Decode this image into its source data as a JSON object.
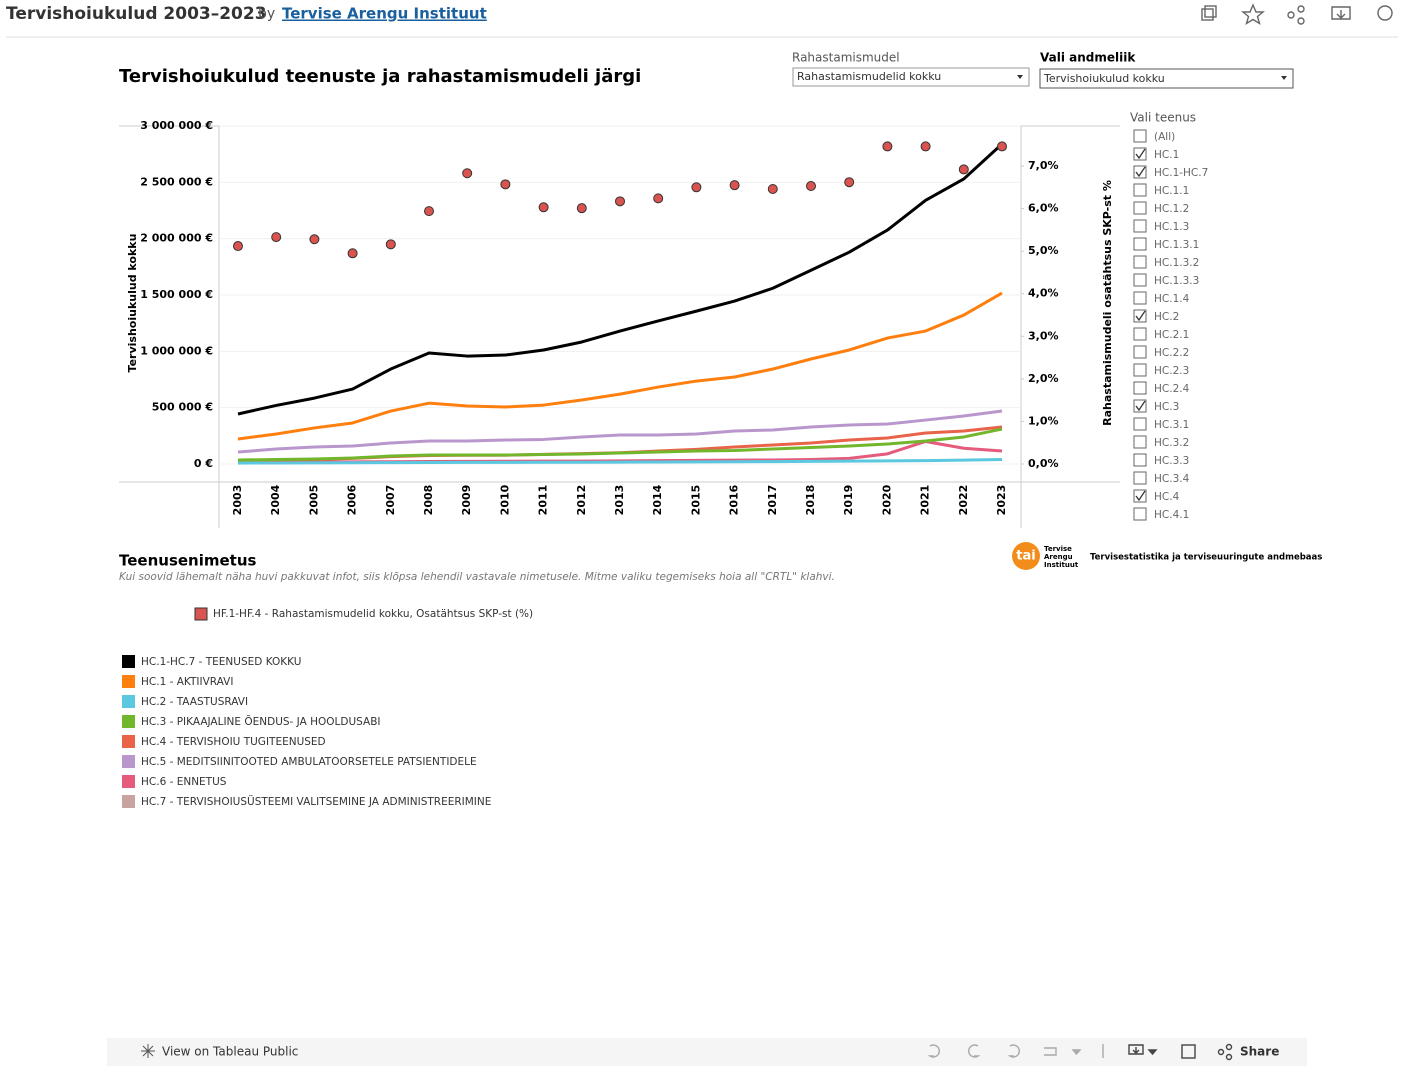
{
  "header": {
    "title": "Tervishoiukulud 2003–2023",
    "by": "by",
    "author": "Tervise Arengu Instituut"
  },
  "dashboard": {
    "title": "Tervishoiukulud teenuste ja rahastamismudeli järgi",
    "filters": [
      {
        "label": "Rahastamismudel",
        "value": "Rahastamismudelid kokku"
      },
      {
        "label": "Vali andmeliik",
        "value": "Tervishoiukulud kokku"
      }
    ],
    "service_filter": {
      "label": "Vali teenus",
      "options": [
        {
          "label": "(All)",
          "checked": false
        },
        {
          "label": "HC.1",
          "checked": true
        },
        {
          "label": "HC.1-HC.7",
          "checked": true
        },
        {
          "label": "HC.1.1",
          "checked": false
        },
        {
          "label": "HC.1.2",
          "checked": false
        },
        {
          "label": "HC.1.3",
          "checked": false
        },
        {
          "label": "HC.1.3.1",
          "checked": false
        },
        {
          "label": "HC.1.3.2",
          "checked": false
        },
        {
          "label": "HC.1.3.3",
          "checked": false
        },
        {
          "label": "HC.1.4",
          "checked": false
        },
        {
          "label": "HC.2",
          "checked": true
        },
        {
          "label": "HC.2.1",
          "checked": false
        },
        {
          "label": "HC.2.2",
          "checked": false
        },
        {
          "label": "HC.2.3",
          "checked": false
        },
        {
          "label": "HC.2.4",
          "checked": false
        },
        {
          "label": "HC.3",
          "checked": true
        },
        {
          "label": "HC.3.1",
          "checked": false
        },
        {
          "label": "HC.3.2",
          "checked": false
        },
        {
          "label": "HC.3.3",
          "checked": false
        },
        {
          "label": "HC.3.4",
          "checked": false
        },
        {
          "label": "HC.4",
          "checked": true
        },
        {
          "label": "HC.4.1",
          "checked": false
        }
      ]
    },
    "legend_title": "Teenusenimetus",
    "legend_note": "Kui soovid lähemalt näha huvi pakkuvat infot, siis klõpsa lehendil vastavale nimetusele. Mitme valiku tegemiseks hoia all \"CRTL\" klahvi.",
    "logo": {
      "mark": "tai",
      "name": [
        "Tervise",
        "Arengu",
        "Instituut"
      ]
    },
    "database": "Tervisestatistika ja terviseuuringute andmebaas"
  },
  "chart_data": {
    "type": "line",
    "categories": [
      2003,
      2004,
      2005,
      2006,
      2007,
      2008,
      2009,
      2010,
      2011,
      2012,
      2013,
      2014,
      2015,
      2016,
      2017,
      2018,
      2019,
      2020,
      2021,
      2022,
      2023
    ],
    "y_label": "Tervishoiukulud kokku",
    "y2_label": "Rahastamismudeli osatähtsus SKP-st %",
    "ylim": [
      0,
      3000000
    ],
    "yticks": [
      {
        "value": 0,
        "label": "0 €"
      },
      {
        "value": 500000,
        "label": "500 000 €"
      },
      {
        "value": 1000000,
        "label": "1 000 000 €"
      },
      {
        "value": 1500000,
        "label": "1 500 000 €"
      },
      {
        "value": 2000000,
        "label": "2 000 000 €"
      },
      {
        "value": 2500000,
        "label": "2 500 000 €"
      },
      {
        "value": 3000000,
        "label": "3 000 000 €"
      }
    ],
    "y2lim": [
      0,
      7.94
    ],
    "y2ticks": [
      {
        "value": 0,
        "label": "0,0%"
      },
      {
        "value": 1,
        "label": "1,0%"
      },
      {
        "value": 2,
        "label": "2,0%"
      },
      {
        "value": 3,
        "label": "3,0%"
      },
      {
        "value": 4,
        "label": "4,0%"
      },
      {
        "value": 5,
        "label": "5,0%"
      },
      {
        "value": 6,
        "label": "6,0%"
      },
      {
        "value": 7,
        "label": "7,0%"
      }
    ],
    "grid": true,
    "series": [
      {
        "name": "HF.1-HF.4 - Rahastamismudelid kokku, Osatähtsus SKP-st (%)",
        "color": "#d9534f",
        "axis": "y2",
        "mark": "dot",
        "values": [
          5.12,
          5.33,
          5.28,
          4.95,
          5.16,
          5.94,
          6.83,
          6.57,
          6.03,
          6.01,
          6.17,
          6.24,
          6.5,
          6.55,
          6.46,
          6.53,
          6.62,
          7.46,
          7.46,
          6.92,
          7.46
        ]
      },
      {
        "name": "HC.1-HC.7 - TEENUSED KOKKU",
        "color": "#000000",
        "mark": "line",
        "values": [
          444000,
          520000,
          585000,
          665000,
          843000,
          985000,
          958000,
          967000,
          1012000,
          1083000,
          1180000,
          1270000,
          1357000,
          1446000,
          1560000,
          1720000,
          1880000,
          2076000,
          2340000,
          2530000,
          2840000
        ]
      },
      {
        "name": "HC.1 - AKTIIVRAVI",
        "color": "#ff7f0e",
        "mark": "line",
        "values": [
          222000,
          266000,
          320000,
          364000,
          470000,
          540000,
          515000,
          506000,
          523000,
          568000,
          620000,
          683000,
          736000,
          772000,
          843000,
          932000,
          1012000,
          1118000,
          1180000,
          1322000,
          1517000
        ]
      },
      {
        "name": "HC.2 - TAASTUSRAVI",
        "color": "#5bc8e0",
        "mark": "line",
        "values": [
          8000,
          9000,
          10000,
          11000,
          12000,
          13000,
          14000,
          14000,
          15000,
          16000,
          17000,
          18000,
          19000,
          20000,
          21000,
          23000,
          25000,
          28000,
          30000,
          34000,
          40000
        ]
      },
      {
        "name": "HC.3 - PIKAAJALINE ÕENDUS- JA HOOLDUSABI",
        "color": "#72b62b",
        "mark": "line",
        "values": [
          35000,
          40000,
          44000,
          53000,
          71000,
          80000,
          80000,
          80000,
          84000,
          89000,
          98000,
          106000,
          115000,
          120000,
          133000,
          146000,
          160000,
          177000,
          204000,
          240000,
          310000
        ]
      },
      {
        "name": "HC.4 - TERVISHOIU TUGITEENUSED",
        "color": "#e8634a",
        "mark": "line",
        "values": [
          30000,
          35000,
          40000,
          50000,
          65000,
          75000,
          78000,
          78000,
          85000,
          92000,
          100000,
          115000,
          130000,
          151000,
          169000,
          186000,
          213000,
          231000,
          275000,
          293000,
          328000
        ]
      },
      {
        "name": "HC.5 - MEDITSIINITOOTED AMBULATOORSETELE PATSIENTIDELE",
        "color": "#b996cc",
        "mark": "line",
        "values": [
          106000,
          133000,
          151000,
          160000,
          186000,
          204000,
          204000,
          213000,
          218000,
          240000,
          257000,
          257000,
          266000,
          293000,
          302000,
          328000,
          346000,
          355000,
          390000,
          426000,
          470000
        ]
      },
      {
        "name": "HC.6 - ENNETUS",
        "color": "#e45b7b",
        "mark": "line",
        "values": [
          15000,
          17000,
          18000,
          19000,
          20000,
          22000,
          23000,
          24000,
          25000,
          26000,
          28000,
          30000,
          32000,
          34000,
          36000,
          40000,
          50000,
          90000,
          200000,
          140000,
          115000
        ]
      },
      {
        "name": "HC.7 - TERVISHOIUSÜSTEEMI VALITSEMINE JA ADMINISTREERIMINE",
        "color": "#c9a39f",
        "mark": "line",
        "values": [
          null,
          null,
          null,
          null,
          null,
          null,
          null,
          null,
          null,
          null,
          null,
          null,
          null,
          null,
          null,
          null,
          null,
          null,
          null,
          null,
          null
        ]
      }
    ]
  },
  "toolbar": {
    "view": "View on Tableau Public",
    "share": "Share"
  }
}
